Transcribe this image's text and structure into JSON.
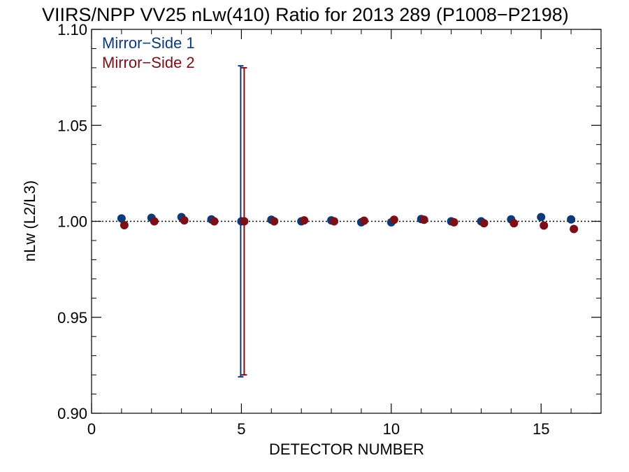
{
  "chart_data": {
    "type": "scatter",
    "title": "VIIRS/NPP VV25 nLw(410) Ratio for 2013 289 (P1008−P2198)",
    "xlabel": "DETECTOR NUMBER",
    "ylabel": "nLw (L2/L3)",
    "xlim": [
      0,
      17
    ],
    "ylim": [
      0.9,
      1.1
    ],
    "x_ticks": [
      0,
      5,
      10,
      15
    ],
    "x_tick_labels": [
      "0",
      "5",
      "10",
      "15"
    ],
    "y_ticks": [
      0.9,
      0.95,
      1.0,
      1.05,
      1.1
    ],
    "y_tick_labels": [
      "0.90",
      "0.95",
      "1.00",
      "1.05",
      "1.10"
    ],
    "reference_line": 1.0,
    "grid": false,
    "legend_position": "top-left",
    "series": [
      {
        "name": "Mirror−Side 1",
        "color": "#0d3a78",
        "x": [
          1,
          2,
          3,
          4,
          5,
          6,
          7,
          8,
          9,
          10,
          11,
          12,
          13,
          14,
          15,
          16
        ],
        "y": [
          1.0015,
          1.0018,
          1.0022,
          1.001,
          1.0,
          1.0008,
          1.0,
          1.0005,
          0.9995,
          0.9995,
          1.0012,
          1.0,
          1.0,
          1.001,
          1.0022,
          1.001
        ],
        "error_bars": [
          {
            "x": 5,
            "low": 0.919,
            "high": 1.081
          }
        ]
      },
      {
        "name": "Mirror−Side 2",
        "color": "#7a0f17",
        "x": [
          1,
          2,
          3,
          4,
          5,
          6,
          7,
          8,
          9,
          10,
          11,
          12,
          13,
          14,
          15,
          16
        ],
        "y": [
          0.998,
          1.0,
          1.0005,
          1.0,
          1.0,
          1.0,
          1.0005,
          1.0,
          1.0003,
          1.0008,
          1.0008,
          0.9995,
          0.999,
          0.999,
          0.9978,
          0.996
        ],
        "error_bars": [
          {
            "x": 5,
            "low": 0.92,
            "high": 1.08
          }
        ]
      }
    ]
  }
}
